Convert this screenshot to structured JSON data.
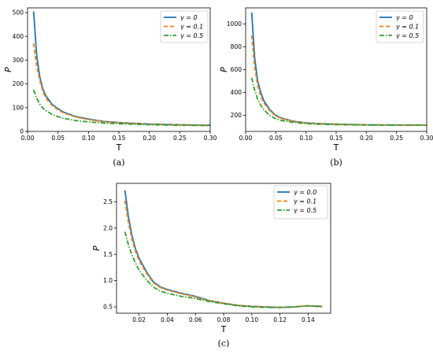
{
  "chart_data": [
    {
      "type": "line",
      "caption": "(a)",
      "xlabel": "T",
      "ylabel": "P",
      "xlim": [
        0.0,
        0.3
      ],
      "ylim": [
        0,
        520
      ],
      "xticks": [
        "0.00",
        "0.05",
        "0.10",
        "0.15",
        "0.20",
        "0.25",
        "0.30"
      ],
      "xtick_values": [
        0.0,
        0.05,
        0.1,
        0.15,
        0.2,
        0.25,
        0.3
      ],
      "yticks": [
        "0",
        "100",
        "200",
        "300",
        "400",
        "500"
      ],
      "ytick_values": [
        0,
        100,
        200,
        300,
        400,
        500
      ],
      "legend_position": "top-right",
      "grid": false,
      "x": [
        0.01,
        0.015,
        0.02,
        0.025,
        0.03,
        0.04,
        0.05,
        0.06,
        0.08,
        0.1,
        0.125,
        0.15,
        0.2,
        0.25,
        0.3
      ],
      "series": [
        {
          "name": "γ = 0",
          "color": "#1f77b4",
          "style": "solid",
          "values": [
            505,
            320,
            230,
            180,
            150,
            115,
            95,
            80,
            62,
            52,
            42,
            37,
            31,
            28,
            26
          ]
        },
        {
          "name": "γ = 0.1",
          "color": "#ff7f0e",
          "style": "dashed",
          "values": [
            370,
            275,
            215,
            170,
            140,
            110,
            90,
            77,
            60,
            50,
            41,
            36,
            30,
            27,
            25
          ]
        },
        {
          "name": "γ = 0.5",
          "color": "#2ca02c",
          "style": "dashdot",
          "values": [
            175,
            140,
            115,
            98,
            88,
            72,
            62,
            55,
            45,
            40,
            35,
            32,
            28,
            26,
            25
          ]
        }
      ]
    },
    {
      "type": "line",
      "caption": "(b)",
      "xlabel": "T",
      "ylabel": "P",
      "xlim": [
        0.0,
        0.3
      ],
      "ylim": [
        60,
        1140
      ],
      "xticks": [
        "0.00",
        "0.05",
        "0.10",
        "0.15",
        "0.20",
        "0.25",
        "0.30"
      ],
      "xtick_values": [
        0.0,
        0.05,
        0.1,
        0.15,
        0.2,
        0.25,
        0.3
      ],
      "yticks": [
        "200",
        "400",
        "600",
        "800",
        "1000"
      ],
      "ytick_values": [
        200,
        400,
        600,
        800,
        1000
      ],
      "legend_position": "top-right",
      "grid": false,
      "x": [
        0.01,
        0.015,
        0.02,
        0.025,
        0.03,
        0.04,
        0.05,
        0.06,
        0.08,
        0.1,
        0.125,
        0.15,
        0.2,
        0.25,
        0.3
      ],
      "series": [
        {
          "name": "γ = 0",
          "color": "#1f77b4",
          "style": "solid",
          "values": [
            1100,
            700,
            500,
            400,
            330,
            250,
            200,
            175,
            148,
            135,
            128,
            123,
            118,
            116,
            115
          ]
        },
        {
          "name": "γ = 0.1",
          "color": "#ff7f0e",
          "style": "dashed",
          "values": [
            900,
            620,
            460,
            370,
            310,
            240,
            195,
            172,
            146,
            134,
            127,
            122,
            118,
            116,
            115
          ]
        },
        {
          "name": "γ = 0.5",
          "color": "#2ca02c",
          "style": "dashdot",
          "values": [
            530,
            420,
            340,
            290,
            250,
            200,
            170,
            155,
            138,
            128,
            122,
            119,
            116,
            115,
            115
          ]
        }
      ]
    },
    {
      "type": "line",
      "caption": "(c)",
      "xlabel": "T",
      "ylabel": "P",
      "xlim": [
        0.004,
        0.156
      ],
      "ylim": [
        0.38,
        2.85
      ],
      "xticks": [
        "0.02",
        "0.04",
        "0.06",
        "0.08",
        "0.10",
        "0.12",
        "0.14"
      ],
      "xtick_values": [
        0.02,
        0.04,
        0.06,
        0.08,
        0.1,
        0.12,
        0.14
      ],
      "yticks": [
        "0.5",
        "1.0",
        "1.5",
        "2.0",
        "2.5"
      ],
      "ytick_values": [
        0.5,
        1.0,
        1.5,
        2.0,
        2.5
      ],
      "legend_position": "top-right",
      "grid": false,
      "x": [
        0.01,
        0.0125,
        0.015,
        0.0175,
        0.02,
        0.025,
        0.03,
        0.035,
        0.04,
        0.05,
        0.06,
        0.065,
        0.07,
        0.08,
        0.09,
        0.1,
        0.11,
        0.12,
        0.13,
        0.14,
        0.15
      ],
      "series": [
        {
          "name": "γ = 0.0",
          "color": "#1f77b4",
          "style": "solid",
          "values": [
            2.72,
            2.2,
            1.85,
            1.6,
            1.43,
            1.18,
            0.98,
            0.88,
            0.83,
            0.76,
            0.7,
            0.66,
            0.62,
            0.57,
            0.53,
            0.51,
            0.5,
            0.49,
            0.5,
            0.52,
            0.51
          ]
        },
        {
          "name": "γ = 0.1",
          "color": "#ff7f0e",
          "style": "dashed",
          "values": [
            2.52,
            2.1,
            1.78,
            1.55,
            1.38,
            1.15,
            0.96,
            0.87,
            0.82,
            0.75,
            0.69,
            0.65,
            0.62,
            0.57,
            0.53,
            0.51,
            0.5,
            0.49,
            0.5,
            0.52,
            0.51
          ]
        },
        {
          "name": "γ = 0.5",
          "color": "#2ca02c",
          "style": "dashdot",
          "values": [
            1.93,
            1.68,
            1.48,
            1.33,
            1.2,
            1.02,
            0.88,
            0.8,
            0.76,
            0.7,
            0.66,
            0.63,
            0.6,
            0.56,
            0.52,
            0.5,
            0.49,
            0.49,
            0.5,
            0.52,
            0.5
          ]
        }
      ]
    }
  ]
}
